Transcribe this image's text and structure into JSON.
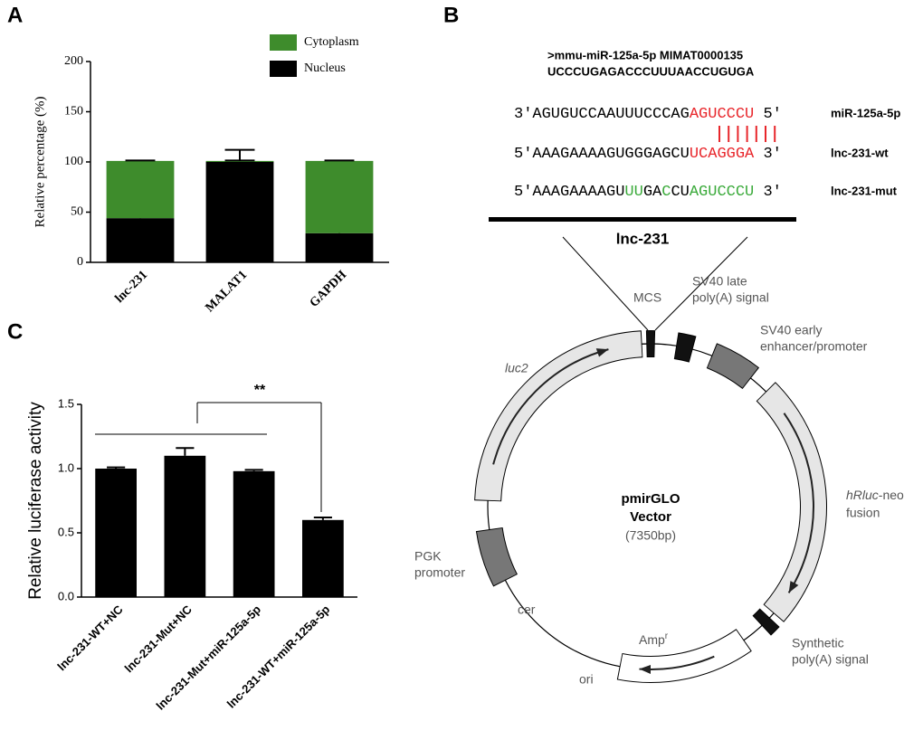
{
  "panel_labels": [
    "A",
    "B",
    "C"
  ],
  "chart_data": [
    {
      "type": "bar",
      "stacked": true,
      "ylabel": "Relative percentage (%)",
      "categories": [
        "lnc-231",
        "MALAT1",
        "GAPDH"
      ],
      "series": [
        {
          "name": "Nucleus",
          "color": "#000000",
          "values": [
            44,
            100,
            29
          ],
          "errors": [
            3,
            12,
            2
          ]
        },
        {
          "name": "Cytoplasm",
          "color": "#3e8c2c",
          "values": [
            57,
            1,
            72
          ],
          "errors": [
            0.5,
            0.5,
            0.5
          ]
        }
      ],
      "ylim": [
        0,
        200
      ],
      "yticks": [
        0,
        50,
        100,
        150,
        200
      ],
      "legend": "top"
    },
    {
      "type": "bar",
      "ylabel": "Relative luciferase activity",
      "categories": [
        "lnc-231-WT+NC",
        "lnc-231-Mut+NC",
        "lnc-231-Mut+miR-125a-5p",
        "lnc-231-WT+miR-125a-5p"
      ],
      "values": [
        1.0,
        1.1,
        0.98,
        0.6
      ],
      "errors": [
        0.01,
        0.06,
        0.01,
        0.02
      ],
      "color": "#000000",
      "ylim": [
        0,
        1.5
      ],
      "yticks": [
        {
          "value": 0,
          "label": "0.0"
        },
        0.5,
        {
          "value": 1,
          "label": "1.0"
        },
        {
          "value": 1.5,
          "label": "1.5"
        }
      ],
      "annotation": "**"
    }
  ],
  "diagram": {
    "header": [
      ">mmu-miR-125a-5p MIMAT0000135",
      "UCCCUGAGACCCUUUAACCUGUGA"
    ],
    "rows": [
      {
        "segments": [
          "3'AGUGUCCAAUUUCCCAG",
          "AGUCCCU",
          " 5'"
        ],
        "label": "miR-125a-5p"
      },
      {
        "segments": [
          "5'AAAGAAAAGUGGGAGCU",
          "UCAGGGA",
          " 3'"
        ],
        "label": "lnc-231-wt"
      },
      {
        "segments": [
          "5'AAAGAAAAGU",
          "UU",
          "GA",
          "C",
          "CU",
          "AGUCCCU",
          " 3'"
        ],
        "label": "lnc-231-mut"
      }
    ],
    "bar_label": "lnc-231",
    "vector": {
      "name": "pmirGLO",
      "line2": "Vector",
      "size": "(7350bp)"
    },
    "features": {
      "mcs": "MCS",
      "sv40_late": [
        "SV40 late",
        "poly(A) signal"
      ],
      "sv40_early": [
        "SV40 early",
        "enhancer/promoter"
      ],
      "luc2": "luc2",
      "hrluc": [
        "hRluc",
        "-neo",
        "fusion"
      ],
      "pgk": [
        "PGK",
        "promoter"
      ],
      "cer": "cer",
      "synthetic": [
        "Synthetic",
        "poly(A) signal"
      ],
      "amp": [
        "Amp",
        "r"
      ],
      "ori": "ori"
    }
  }
}
